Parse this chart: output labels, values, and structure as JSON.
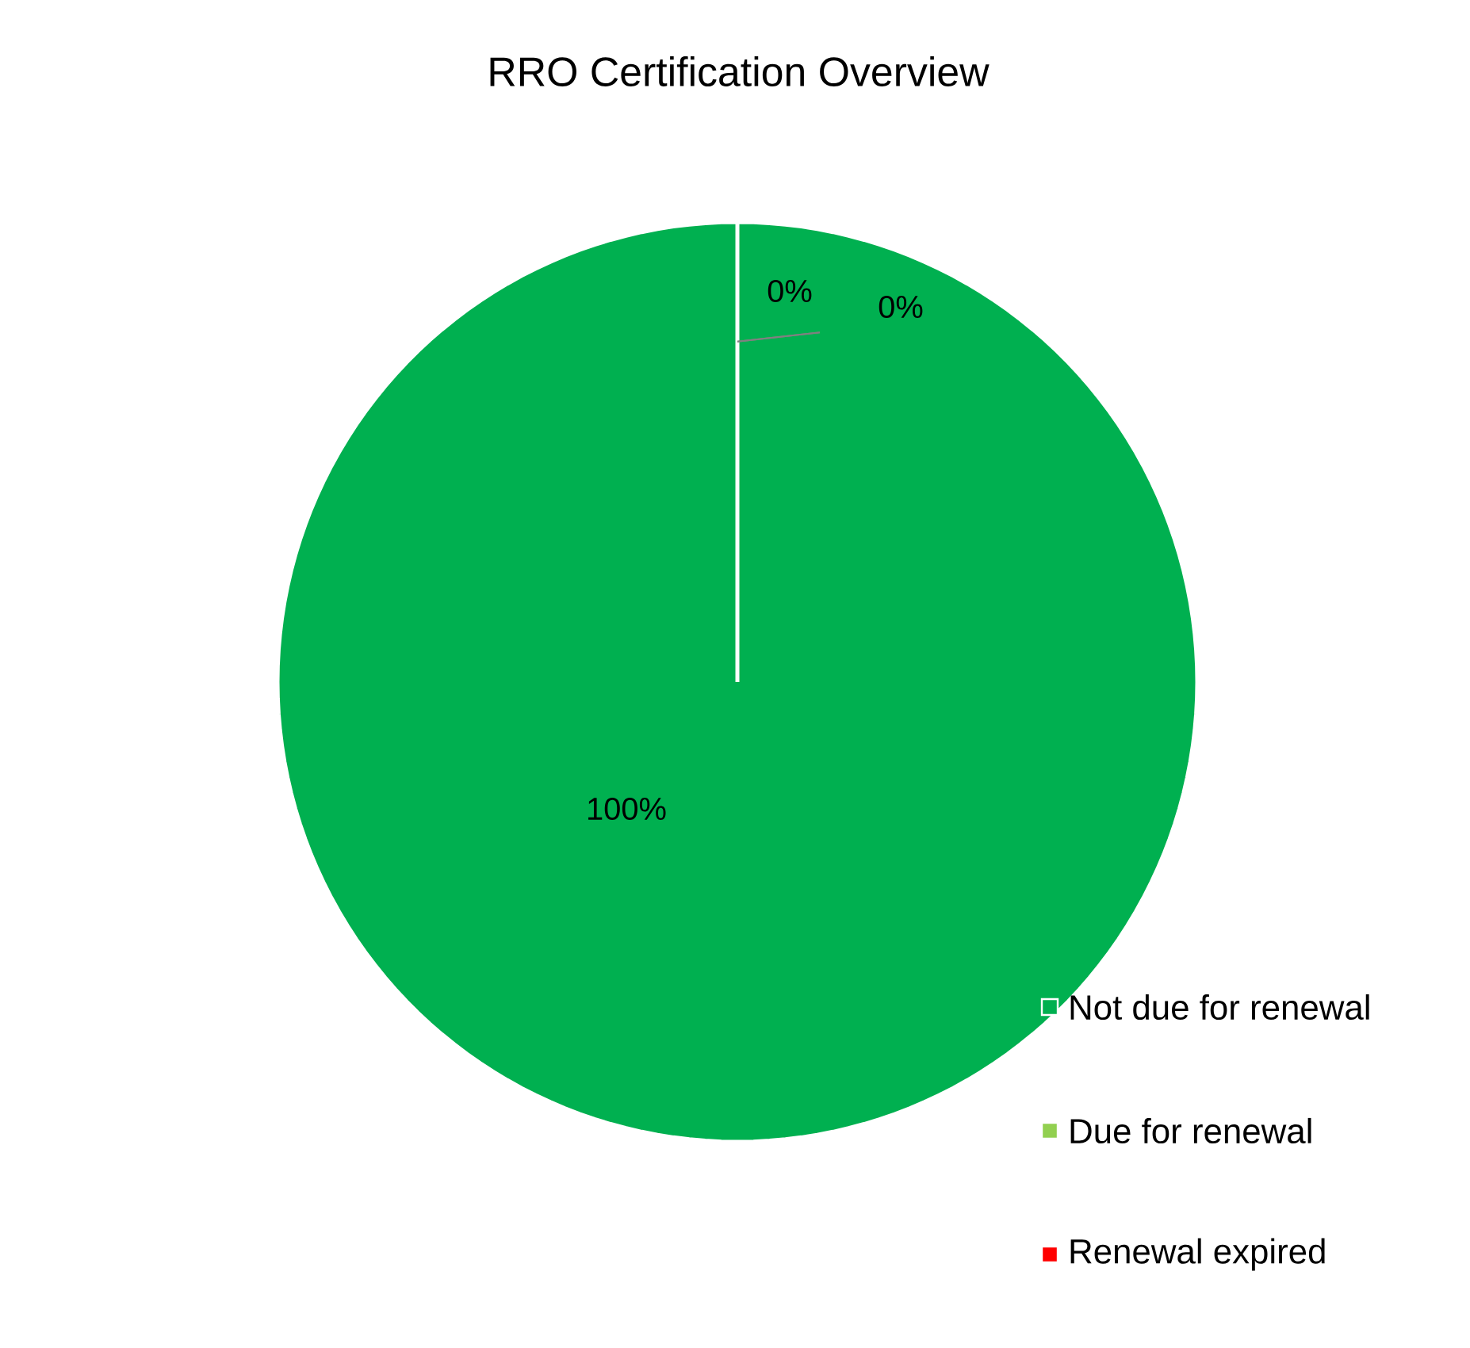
{
  "chart_data": {
    "type": "pie",
    "title": "RRO Certification Overview",
    "categories": [
      "Not due for renewal",
      "Due for renewal",
      "Renewal expired"
    ],
    "values": [
      100,
      0,
      0
    ],
    "value_labels": [
      "100%",
      "0%",
      "0%"
    ],
    "colors": [
      "#00b050",
      "#92d050",
      "#ff0000"
    ],
    "legend": "bottom right"
  }
}
